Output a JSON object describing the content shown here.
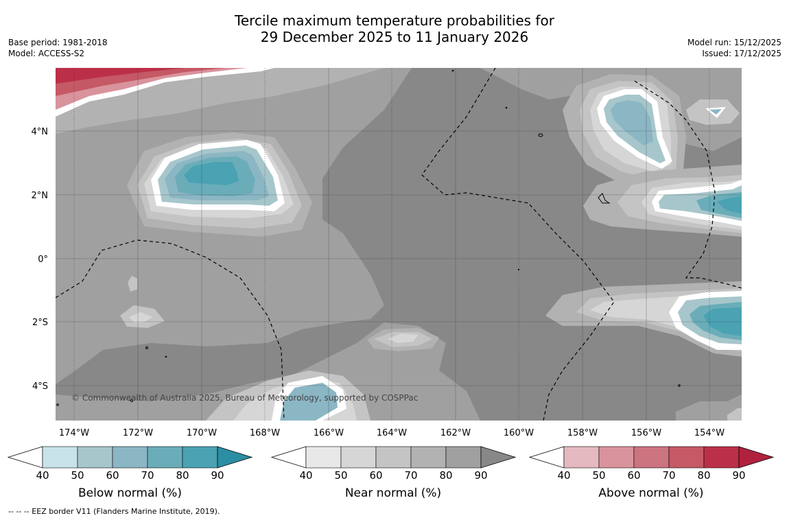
{
  "title": {
    "line1": "Tercile maximum temperature probabilities for",
    "line2": "29 December 2025 to 11 January 2026"
  },
  "meta_left": {
    "base_period": "Base period: 1981-2018",
    "model": "Model: ACCESS-S2"
  },
  "meta_right": {
    "model_run": "Model run: 15/12/2025",
    "issued": "Issued: 17/12/2025"
  },
  "map": {
    "lon_labels": [
      "174°W",
      "172°W",
      "170°W",
      "168°W",
      "166°W",
      "164°W",
      "162°W",
      "160°W",
      "158°W",
      "156°W",
      "154°W"
    ],
    "lat_labels": [
      "4°N",
      "2°N",
      "0°",
      "2°S",
      "4°S"
    ],
    "copyright": "© Commonwealth of Australia 2025, Bureau of Meteorology, supported by COSPPac",
    "colors": {
      "near_40": "#e8e8e8",
      "near_50": "#d6d6d6",
      "near_60": "#c4c4c4",
      "near_70": "#b2b2b2",
      "near_80": "#a0a0a0",
      "near_90": "#888888",
      "below_40": "#c8e3e9",
      "below_50": "#a7c6cb",
      "below_60": "#8bb6c4",
      "below_70": "#6aadb9",
      "below_80": "#4aa2b3",
      "below_90": "#2b8ea3",
      "above_40": "#e4b9bf",
      "above_50": "#d9939c",
      "above_60": "#cc747f",
      "above_70": "#c55965",
      "above_80": "#bb3048",
      "above_90": "#b0213e"
    }
  },
  "colorbars": [
    {
      "label": "Below normal (%)",
      "ticks": [
        "40",
        "50",
        "60",
        "70",
        "80",
        "90"
      ],
      "colors": [
        "#c8e3e9",
        "#a7c6cb",
        "#8bb6c4",
        "#6aadb9",
        "#4aa2b3",
        "#2b8ea3"
      ]
    },
    {
      "label": "Near normal (%)",
      "ticks": [
        "40",
        "50",
        "60",
        "70",
        "80",
        "90"
      ],
      "colors": [
        "#e8e8e8",
        "#d6d6d6",
        "#c4c4c4",
        "#b2b2b2",
        "#a0a0a0",
        "#888888"
      ]
    },
    {
      "label": "Above normal (%)",
      "ticks": [
        "40",
        "50",
        "60",
        "70",
        "80",
        "90"
      ],
      "colors": [
        "#e4b9bf",
        "#d9939c",
        "#cc747f",
        "#c55965",
        "#bb3048",
        "#b0213e"
      ]
    }
  ],
  "footnote": "-- -- -- EEZ border V11 (Flanders Marine Institute, 2019)."
}
